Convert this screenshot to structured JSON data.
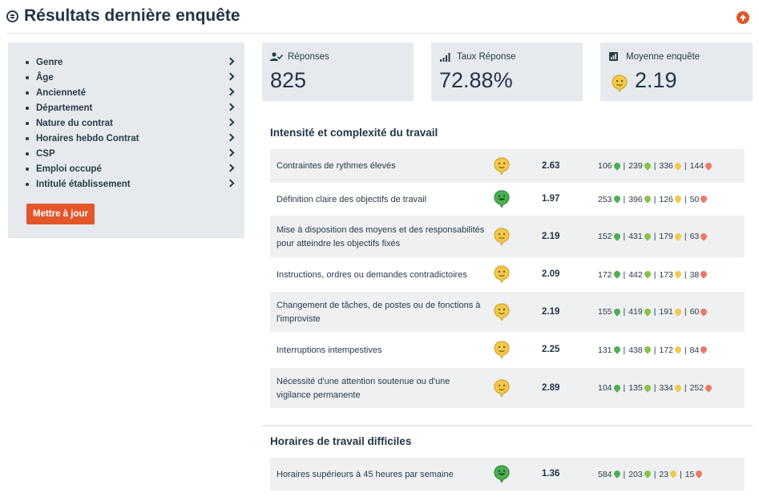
{
  "header": {
    "title": "Résultats dernière enquête"
  },
  "filters": {
    "items": [
      {
        "label": "Genre"
      },
      {
        "label": "Âge"
      },
      {
        "label": "Ancienneté"
      },
      {
        "label": "Département"
      },
      {
        "label": "Nature du contrat"
      },
      {
        "label": "Horaires hebdo Contrat"
      },
      {
        "label": "CSP"
      },
      {
        "label": "Emploi occupé"
      },
      {
        "label": "Intitulé établissement"
      }
    ],
    "update_label": "Mettre à jour"
  },
  "kpis": {
    "responses": {
      "label": "Réponses",
      "value": "825"
    },
    "rate": {
      "label": "Taux Réponse",
      "value": "72.88%"
    },
    "average": {
      "label": "Moyenne enquête",
      "value": "2.19"
    }
  },
  "colors": {
    "accent": "#e2562a",
    "good": "#4caf50",
    "ok": "#8bc34a",
    "mid": "#f2c94c",
    "bad": "#ec7a63"
  },
  "sections": [
    {
      "title": "Intensité et complexité du travail",
      "rows": [
        {
          "label": "Contraintes de rythmes élevés",
          "face": "neutral",
          "score": "2.63",
          "d": [
            "106",
            "239",
            "336",
            "144"
          ]
        },
        {
          "label": "Définition claire des objectifs de travail",
          "face": "happy",
          "score": "1.97",
          "d": [
            "253",
            "396",
            "126",
            "50"
          ]
        },
        {
          "label": "Mise à disposition des moyens et des responsabilités pour atteindre les objectifs fixés",
          "face": "neutral",
          "score": "2.19",
          "d": [
            "152",
            "431",
            "179",
            "63"
          ]
        },
        {
          "label": "Instructions, ordres ou demandes contradictoires",
          "face": "neutral",
          "score": "2.09",
          "d": [
            "172",
            "442",
            "173",
            "38"
          ]
        },
        {
          "label": "Changement de tâches, de postes ou de fonctions à l'improviste",
          "face": "neutral",
          "score": "2.19",
          "d": [
            "155",
            "419",
            "191",
            "60"
          ]
        },
        {
          "label": "Interruptions intempestives",
          "face": "neutral",
          "score": "2.25",
          "d": [
            "131",
            "438",
            "172",
            "84"
          ]
        },
        {
          "label": "Nécessité d'une attention soutenue ou d'une vigilance permanente",
          "face": "neutral",
          "score": "2.89",
          "d": [
            "104",
            "135",
            "334",
            "252"
          ]
        }
      ]
    },
    {
      "title": "Horaires de travail difficiles",
      "rows": [
        {
          "label": "Horaires supérieurs à 45 heures par semaine",
          "face": "happy",
          "score": "1.36",
          "d": [
            "584",
            "203",
            "23",
            "15"
          ]
        }
      ]
    }
  ]
}
